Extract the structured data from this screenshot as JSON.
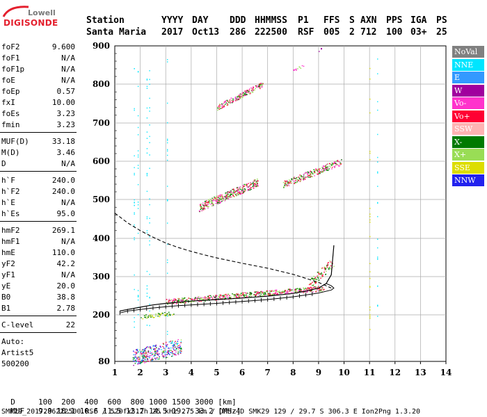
{
  "logo": {
    "line1": "Lowell",
    "line2": "DIGISONDE"
  },
  "header": {
    "row1": [
      "Station",
      "YYYY",
      "DAY",
      "DDD",
      "HHMMSS",
      "P1",
      "FFS",
      "S",
      "AXN",
      "PPS",
      "IGA",
      "PS"
    ],
    "row2": [
      "Santa Maria",
      "2017",
      "Oct13",
      "286",
      "222500",
      "RSF",
      "005",
      "2",
      "712",
      "100",
      "03+",
      "25"
    ]
  },
  "params": [
    {
      "label": "foF2",
      "value": "9.600"
    },
    {
      "label": "foF1",
      "value": "N/A"
    },
    {
      "label": "foF1p",
      "value": "N/A"
    },
    {
      "label": "foE",
      "value": "N/A"
    },
    {
      "label": "foEp",
      "value": "0.57"
    },
    {
      "label": "fxI",
      "value": "10.00"
    },
    {
      "label": "foEs",
      "value": "3.23"
    },
    {
      "label": "fmin",
      "value": "3.23"
    },
    {
      "label": "MUF(D)",
      "value": "33.18"
    },
    {
      "label": "M(D)",
      "value": "3.46"
    },
    {
      "label": "D",
      "value": "N/A"
    },
    {
      "label": "h`F",
      "value": "240.0"
    },
    {
      "label": "h`F2",
      "value": "240.0"
    },
    {
      "label": "h`E",
      "value": "N/A"
    },
    {
      "label": "h`Es",
      "value": "95.0"
    },
    {
      "label": "hmF2",
      "value": "269.1"
    },
    {
      "label": "hmF1",
      "value": "N/A"
    },
    {
      "label": "hmE",
      "value": "110.0"
    },
    {
      "label": "yF2",
      "value": "42.2"
    },
    {
      "label": "yF1",
      "value": "N/A"
    },
    {
      "label": "yE",
      "value": "20.0"
    },
    {
      "label": "B0",
      "value": "38.8"
    },
    {
      "label": "B1",
      "value": "2.78"
    },
    {
      "label": "C-level",
      "value": "22"
    }
  ],
  "autoscaling": {
    "line1": "Auto:",
    "line2": "Artist5",
    "line3": "500200"
  },
  "legend": [
    {
      "label": "NoVal",
      "color": "#808080",
      "text": "#ffffff"
    },
    {
      "label": "NNE",
      "color": "#00e5ff",
      "text": "#ffffff"
    },
    {
      "label": "E",
      "color": "#3399ff",
      "text": "#ffffff"
    },
    {
      "label": "W",
      "color": "#a0009e",
      "text": "#ffffff"
    },
    {
      "label": "Vo-",
      "color": "#ff33cc",
      "text": "#ffffff"
    },
    {
      "label": "Vo+",
      "color": "#ff0033",
      "text": "#ffffff"
    },
    {
      "label": "SSW",
      "color": "#ffb3b3",
      "text": "#ffffff"
    },
    {
      "label": "X-",
      "color": "#007a00",
      "text": "#ffffff"
    },
    {
      "label": "X+",
      "color": "#99dd55",
      "text": "#ffffff"
    },
    {
      "label": "SSE",
      "color": "#dddd00",
      "text": "#ffffff"
    },
    {
      "label": "NNW",
      "color": "#2222ee",
      "text": "#ffffff"
    }
  ],
  "footer": {
    "d_label": "D",
    "d_values": "100  200  400  600  800 1000 1500 3000 [km]",
    "muf_label": "MUF",
    "muf_values": "9.9 10.1 10.6 11.5 12.7 14.5 19.7 33.2 [MHz]",
    "file_line": "SMK29_2017286222500.RSF / 520fx512h 25 kHz 2.5 km / DPS-4D SMK29 129 / 29.7 S 306.3 E Ion2Png 1.3.20"
  },
  "chart_data": {
    "type": "scatter",
    "xlim": [
      1,
      14
    ],
    "ylim": [
      80,
      900
    ],
    "x_ticks": [
      1,
      2,
      3,
      4,
      5,
      6,
      7,
      8,
      9,
      10,
      11,
      12,
      13,
      14
    ],
    "y_ticks": [
      80,
      200,
      300,
      400,
      500,
      600,
      700,
      800,
      900
    ],
    "y_scale": "nonlinear (compressed below 200 km)",
    "grid": true,
    "series": [
      {
        "name": "X+",
        "trace": "virtual_height_trace_black",
        "x": [
          1.2,
          1.5,
          2.0,
          2.5,
          3.0,
          3.5,
          4.0,
          5.0,
          6.0,
          7.0,
          8.0,
          8.5,
          9.0,
          9.3,
          9.5,
          9.6
        ],
        "y": [
          210,
          214,
          220,
          226,
          230,
          233,
          236,
          240,
          244,
          249,
          256,
          262,
          270,
          282,
          305,
          382
        ]
      },
      {
        "name": "X-",
        "trace": "oblique_model_dashed",
        "x": [
          1.0,
          1.5,
          2.0,
          2.5,
          3.0,
          3.5,
          4.0,
          4.5,
          5.0,
          6.0,
          7.0,
          8.0,
          9.0,
          9.5
        ],
        "y": [
          465,
          440,
          420,
          403,
          388,
          376,
          366,
          357,
          349,
          335,
          322,
          306,
          285,
          270
        ]
      },
      {
        "name": "Vo+",
        "trace": "profile_tick_line",
        "x": [
          1.2,
          1.5,
          2.0,
          2.5,
          3.0,
          3.5,
          4.0,
          5.0,
          6.0,
          7.0,
          8.0,
          9.0,
          9.5,
          9.6,
          9.5,
          9.3
        ],
        "y": [
          205,
          210,
          214,
          218,
          221,
          224,
          226,
          230,
          235,
          240,
          247,
          257,
          265,
          270,
          276,
          282
        ]
      }
    ]
  }
}
